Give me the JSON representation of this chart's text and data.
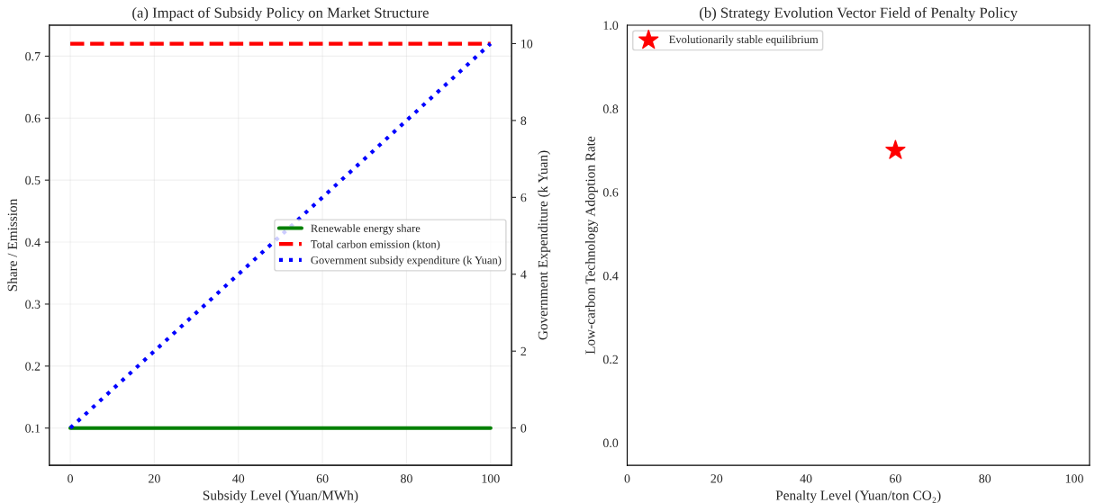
{
  "chart_data": [
    {
      "type": "line",
      "title": "(a) Impact of Subsidy Policy on Market Structure",
      "xlabel": "Subsidy Level (Yuan/MWh)",
      "ylabel": "Share / Emission",
      "y2label": "Government Expenditure (k Yuan)",
      "x": [
        0,
        100
      ],
      "xlim": [
        -5,
        105
      ],
      "xticks": [
        0,
        20,
        40,
        60,
        80,
        100
      ],
      "ylim": [
        0.04,
        0.75
      ],
      "yticks": [
        0.1,
        0.2,
        0.3,
        0.4,
        0.5,
        0.6,
        0.7
      ],
      "y2lim": [
        -0.97,
        10.48
      ],
      "y2ticks": [
        0,
        2,
        4,
        6,
        8,
        10
      ],
      "grid": true,
      "legend": "right",
      "series": [
        {
          "name": "Renewable energy share",
          "color": "#008000",
          "values": [
            0.1,
            0.1
          ],
          "line_style": "solid"
        },
        {
          "name": "Total carbon emission (kton)",
          "color": "#ff0000",
          "values": [
            0.72,
            0.72
          ],
          "line_style": "dashed"
        },
        {
          "name": "Government subsidy expenditure (k Yuan)",
          "color": "#0000ff",
          "values": [
            0,
            10
          ],
          "line_style": "dotted",
          "axis": "y2"
        }
      ]
    },
    {
      "type": "scatter",
      "title": "(b) Strategy Evolution Vector Field of Penalty Policy",
      "xlabel": "Penalty Level (Yuan/ton CO₂)",
      "ylabel": "Low-carbon Technology Adoption Rate",
      "xlim": [
        0,
        103.4
      ],
      "xticks": [
        0,
        20,
        40,
        60,
        80,
        100
      ],
      "ylim": [
        -0.054,
        1.0
      ],
      "yticks": [
        {
          "value": 0,
          "label": "0.0"
        },
        0.2,
        0.4,
        0.6,
        0.8,
        {
          "value": 1,
          "label": "1.0"
        }
      ],
      "legend": "top left",
      "marker": "star",
      "series": [
        {
          "name": "Evolutionarily stable equilibrium",
          "color": "#ff0000",
          "x": [
            60
          ],
          "values": [
            0.7
          ]
        }
      ]
    }
  ]
}
